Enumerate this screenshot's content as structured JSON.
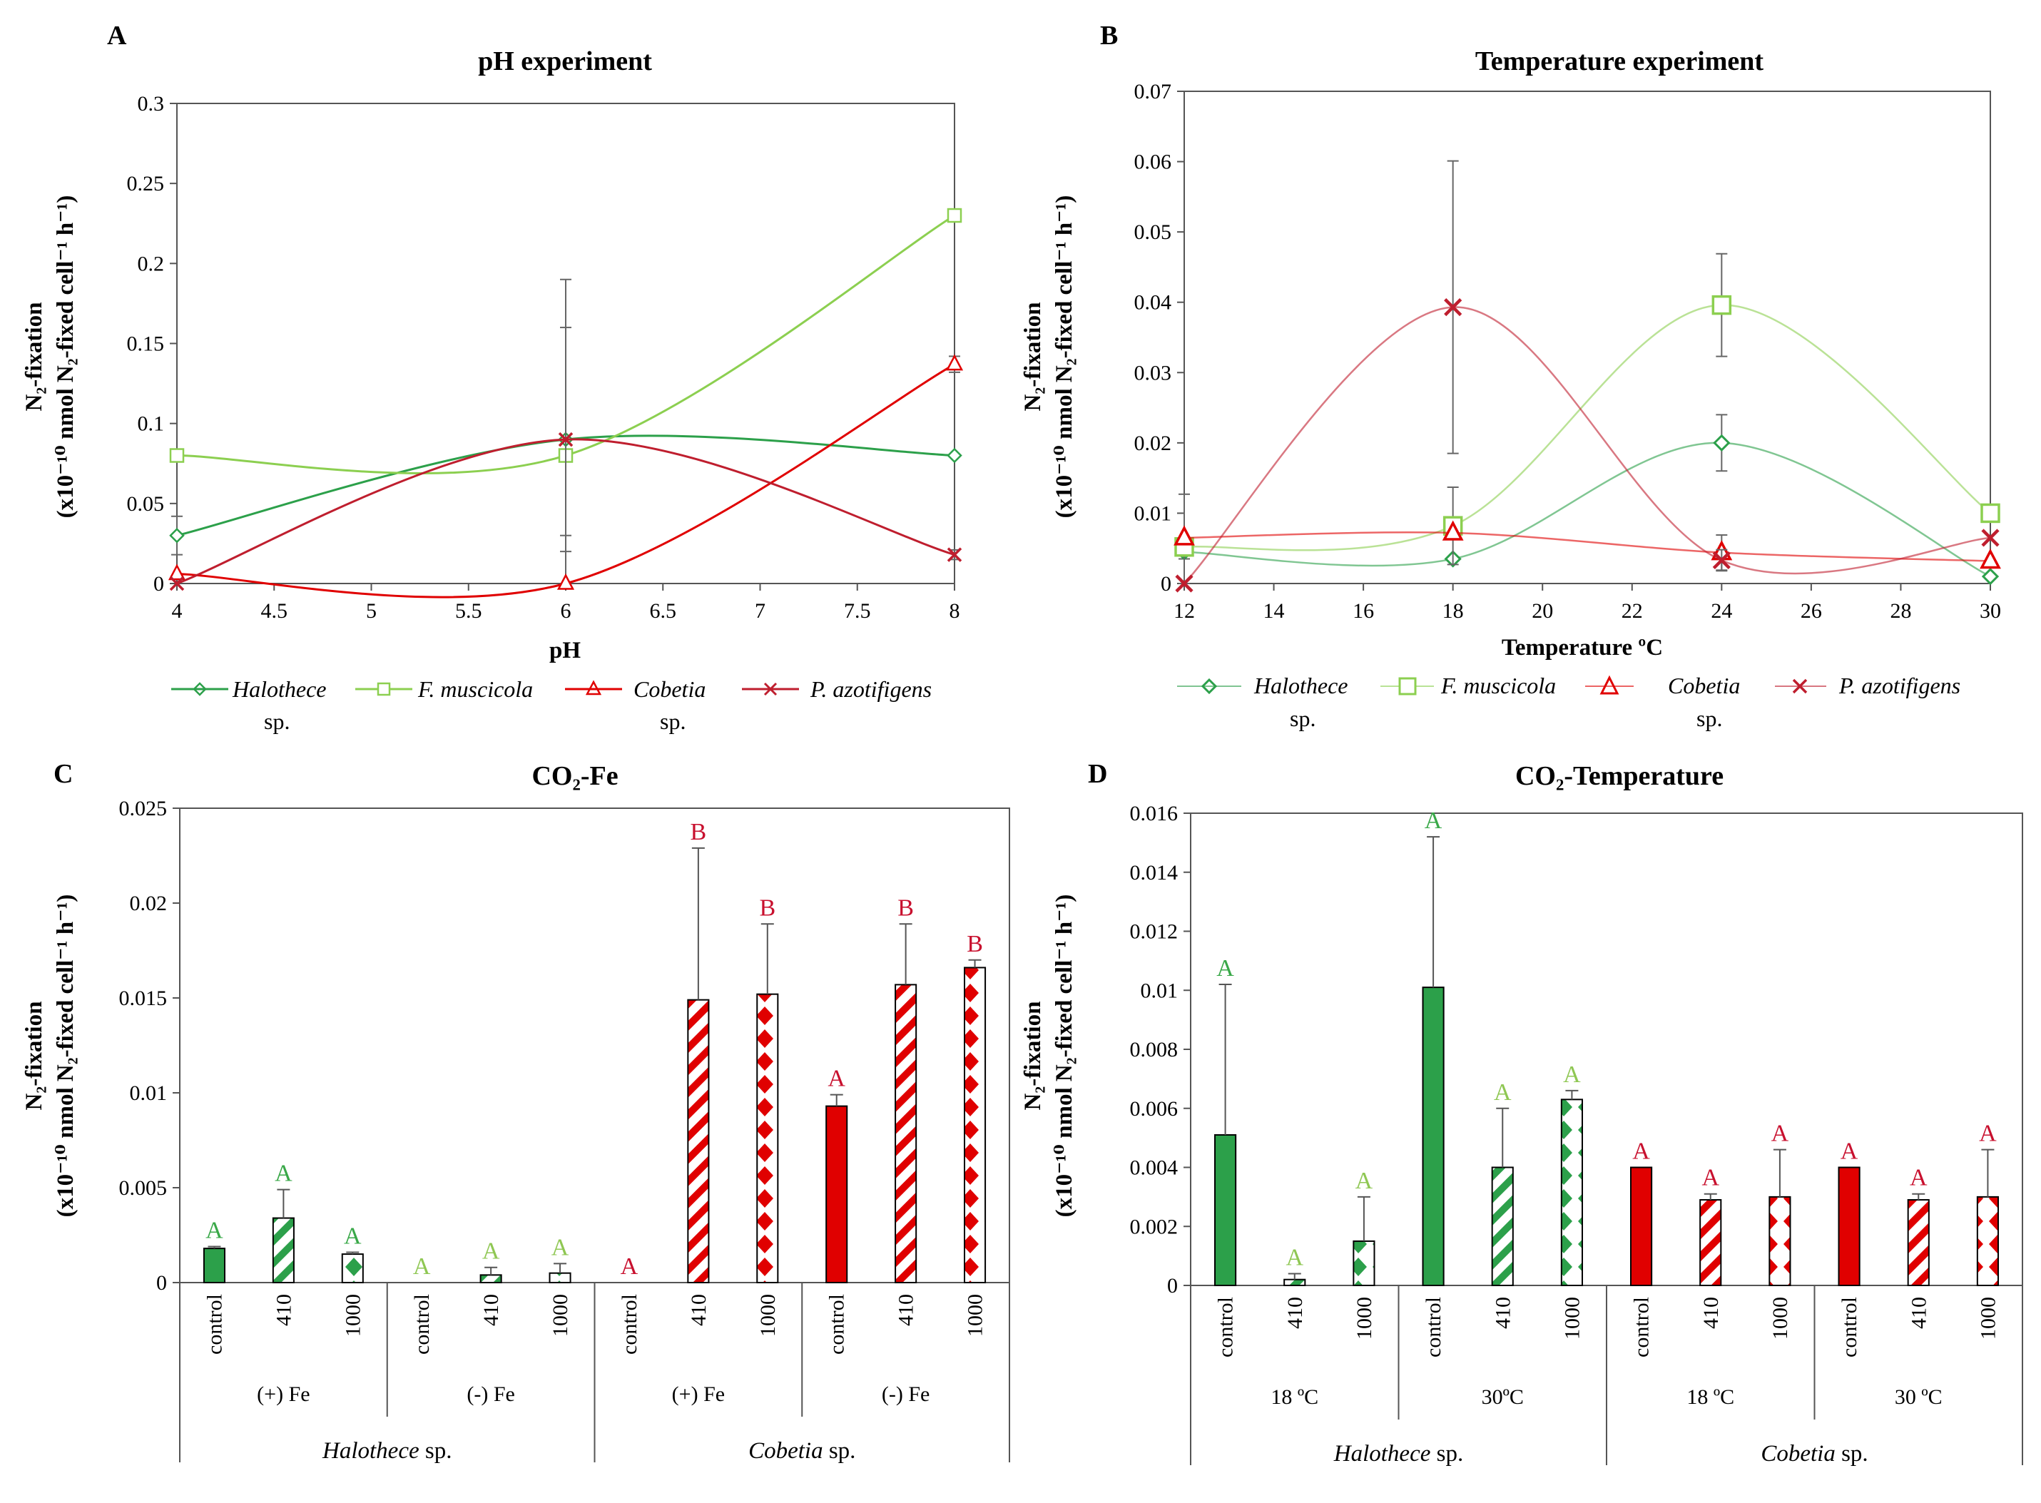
{
  "colors": {
    "dark_green": "#2ca04a",
    "light_green": "#8ccf50",
    "red": "#e00000",
    "dark_red": "#bf1e2e",
    "letter_green": "#39a848",
    "letter_light": "#8fc753",
    "letter_red": "#c8102e"
  },
  "legend_species": [
    {
      "name": "Halothece",
      "suffix": "sp."
    },
    {
      "name": "F. muscicola",
      "suffix": ""
    },
    {
      "name": "Cobetia",
      "suffix": "sp."
    },
    {
      "name": "P. azotifigens",
      "suffix": ""
    }
  ],
  "ylabel": {
    "line1": "N₂-fixation",
    "line2": "(x10⁻¹⁰ nmol N₂-fixed cell⁻¹ h⁻¹)"
  },
  "chart_data": [
    {
      "panel": "A",
      "type": "line",
      "title": "pH experiment",
      "xlabel": "pH",
      "xlim": [
        4,
        8
      ],
      "ylim": [
        0,
        0.3
      ],
      "xticks": [
        "4",
        "4.5",
        "5",
        "5.5",
        "6",
        "6.5",
        "7",
        "7.5",
        "8"
      ],
      "yticks": [
        "0",
        "0.05",
        "0.1",
        "0.15",
        "0.2",
        "0.25",
        "0.3"
      ],
      "x": [
        4,
        6,
        8
      ],
      "series": [
        {
          "name": "Halothece sp.",
          "values": [
            0.03,
            0.09,
            0.08
          ],
          "err": [
            0.012,
            0,
            0
          ]
        },
        {
          "name": "F. muscicola",
          "values": [
            0.08,
            0.08,
            0.23
          ],
          "err": [
            0,
            0.11,
            0
          ]
        },
        {
          "name": "Cobetia sp.",
          "values": [
            0.006,
            0,
            0.137
          ],
          "err": [
            0,
            0.03,
            0.005
          ]
        },
        {
          "name": "P. azotifigens",
          "values": [
            0,
            0.09,
            0.018
          ],
          "err": [
            0,
            0.07,
            0.003
          ]
        }
      ]
    },
    {
      "panel": "B",
      "type": "line",
      "title": "Temperature experiment",
      "xlabel": "Temperature ºC",
      "xlim": [
        12,
        30
      ],
      "ylim": [
        0,
        0.07
      ],
      "xticks": [
        "12",
        "14",
        "16",
        "18",
        "20",
        "22",
        "24",
        "26",
        "28",
        "30"
      ],
      "yticks": [
        "0",
        "0.01",
        "0.02",
        "0.03",
        "0.04",
        "0.05",
        "0.06",
        "0.07"
      ],
      "x": [
        12,
        18,
        24,
        30
      ],
      "series": [
        {
          "name": "Halothece sp.",
          "values": [
            0.0045,
            0.0035,
            0.02,
            0.001
          ],
          "err": [
            0.001,
            0,
            0.004,
            0
          ]
        },
        {
          "name": "F. muscicola",
          "values": [
            0.0052,
            0.0082,
            0.0396,
            0.01
          ],
          "err": [
            0.0075,
            0.0055,
            0.0073,
            0
          ]
        },
        {
          "name": "Cobetia sp.",
          "values": [
            0.0065,
            0.0072,
            0.0044,
            0.0032
          ],
          "err": [
            0,
            0,
            0.0025,
            0
          ]
        },
        {
          "name": "P. azotifigens",
          "values": [
            0,
            0.0393,
            0.0033,
            0.0065
          ],
          "err": [
            0,
            0.0208,
            0.0015,
            0
          ]
        }
      ]
    },
    {
      "panel": "C",
      "type": "bar",
      "title": "CO₂-Fe",
      "ylim": [
        0,
        0.025
      ],
      "yticks": [
        "0",
        "0.005",
        "0.01",
        "0.015",
        "0.02",
        "0.025"
      ],
      "categories": [
        "control",
        "410",
        "1000",
        "control",
        "410",
        "1000",
        "control",
        "410",
        "1000",
        "control",
        "410",
        "1000"
      ],
      "groups": [
        "(+) Fe",
        "(-) Fe",
        "(+) Fe",
        "(-) Fe"
      ],
      "species_groups": [
        "Halothece sp.",
        "Cobetia sp."
      ],
      "values": [
        0.0018,
        0.0034,
        0.0015,
        0,
        0.0004,
        0.0005,
        0,
        0.0149,
        0.0152,
        0.0093,
        0.0157,
        0.0166
      ],
      "err": [
        0.0001,
        0.0015,
        0.0001,
        0,
        0.0004,
        0.0005,
        0,
        0.008,
        0.0037,
        0.0006,
        0.0032,
        0.0004
      ],
      "letters": [
        "A",
        "A",
        "A",
        "A",
        "A",
        "A",
        "A",
        "B",
        "B",
        "A",
        "B",
        "B"
      ]
    },
    {
      "panel": "D",
      "type": "bar",
      "title": "CO₂-Temperature",
      "ylim": [
        0,
        0.016
      ],
      "yticks": [
        "0",
        "0.002",
        "0.004",
        "0.006",
        "0.008",
        "0.01",
        "0.012",
        "0.014",
        "0.016"
      ],
      "categories": [
        "control",
        "410",
        "1000",
        "control",
        "410",
        "1000",
        "control",
        "410",
        "1000",
        "control",
        "410",
        "1000"
      ],
      "groups": [
        "18 ºC",
        "30ºC",
        "18 ºC",
        "30 ºC"
      ],
      "species_groups": [
        "Halothece sp.",
        "Cobetia sp."
      ],
      "values": [
        0.0051,
        0.0002,
        0.0015,
        0.0101,
        0.004,
        0.0063,
        0.004,
        0.0029,
        0.003,
        0.004,
        0.0029,
        0.003
      ],
      "err": [
        0.0051,
        0.0002,
        0.0015,
        0.0051,
        0.002,
        0.0003,
        0,
        0.0002,
        0.0016,
        0,
        0.0002,
        0.0016
      ],
      "letters": [
        "A",
        "A",
        "A",
        "A",
        "A",
        "A",
        "A",
        "A",
        "A",
        "A",
        "A",
        "A"
      ]
    }
  ]
}
